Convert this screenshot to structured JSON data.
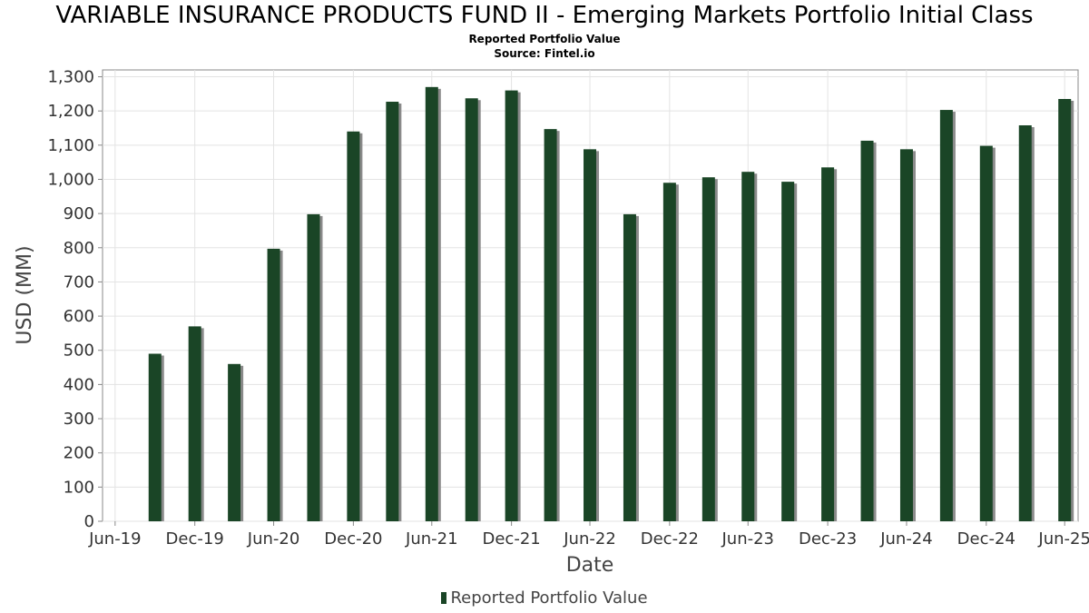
{
  "title": "VARIABLE INSURANCE PRODUCTS FUND II - Emerging Markets Portfolio Initial Class",
  "subtitle": "Reported Portfolio Value",
  "source": "Source: Fintel.io",
  "chart_data": {
    "type": "bar",
    "xlabel": "Date",
    "ylabel": "USD (MM)",
    "ylim": [
      0,
      1320
    ],
    "y_ticks": [
      0,
      100,
      200,
      300,
      400,
      500,
      600,
      700,
      800,
      900,
      1000,
      1100,
      1200,
      1300
    ],
    "y_tick_labels": [
      "0",
      "100",
      "200",
      "300",
      "400",
      "500",
      "600",
      "700",
      "800",
      "900",
      "1,000",
      "1,100",
      "1,200",
      "1,300"
    ],
    "x_range": [
      "2019-06-01",
      "2025-07-31"
    ],
    "x_ticks": [
      "2019-06-30",
      "2019-12-31",
      "2020-06-30",
      "2020-12-31",
      "2021-06-30",
      "2021-12-31",
      "2022-06-30",
      "2022-12-31",
      "2023-06-30",
      "2023-12-31",
      "2024-06-30",
      "2024-12-31",
      "2025-06-30"
    ],
    "x_tick_labels": [
      "Jun-19",
      "Dec-19",
      "Jun-20",
      "Dec-20",
      "Jun-21",
      "Dec-21",
      "Jun-22",
      "Dec-22",
      "Jun-23",
      "Dec-23",
      "Jun-24",
      "Dec-24",
      "Jun-25"
    ],
    "grid": true,
    "legend_position": "bottom-center",
    "series": [
      {
        "name": "Reported Portfolio Value",
        "color": "#1a4526",
        "x": [
          "2019-09-30",
          "2019-12-31",
          "2020-03-31",
          "2020-06-30",
          "2020-09-30",
          "2020-12-31",
          "2021-03-31",
          "2021-06-30",
          "2021-09-30",
          "2021-12-31",
          "2022-03-31",
          "2022-06-30",
          "2022-09-30",
          "2022-12-31",
          "2023-03-31",
          "2023-06-30",
          "2023-09-30",
          "2023-12-31",
          "2024-03-31",
          "2024-06-30",
          "2024-09-30",
          "2024-12-31",
          "2025-03-31",
          "2025-06-30"
        ],
        "values": [
          490,
          570,
          460,
          797,
          898,
          1140,
          1227,
          1270,
          1237,
          1260,
          1147,
          1088,
          898,
          990,
          1006,
          1022,
          993,
          1035,
          1113,
          1088,
          1203,
          1098,
          1158,
          1235
        ]
      }
    ]
  }
}
